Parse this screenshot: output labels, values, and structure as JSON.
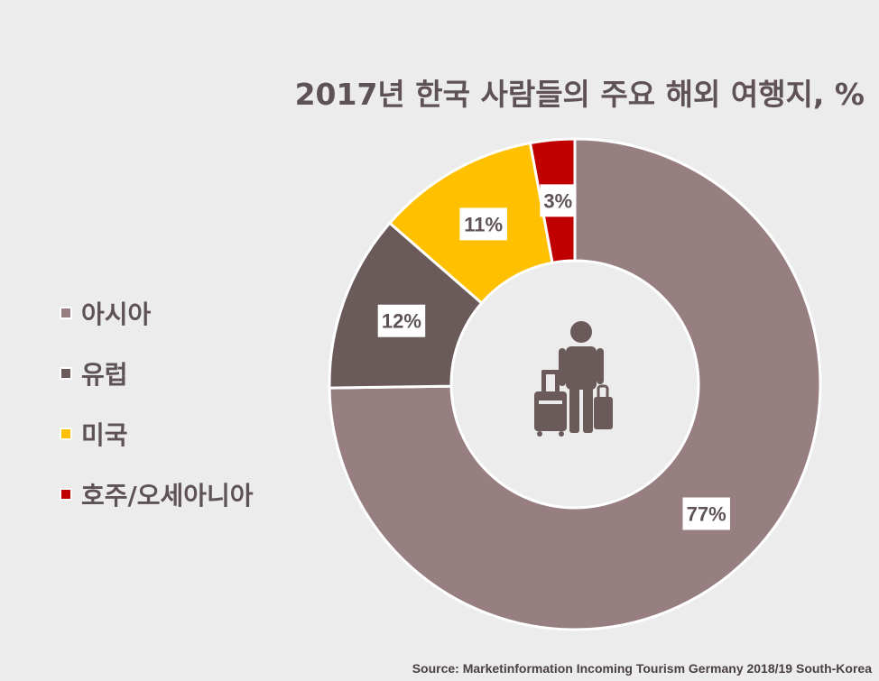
{
  "chart_data": {
    "type": "pie",
    "variant": "donut",
    "title": "2017년 한국 사람들의 주요 해외 여행지, %",
    "categories": [
      "아시아",
      "유럽",
      "미국",
      "호주/오세아니아"
    ],
    "values": [
      77,
      12,
      11,
      3
    ],
    "value_labels": [
      "77%",
      "12%",
      "11%",
      "3%"
    ],
    "colors": [
      "#977e80",
      "#6b5a5a",
      "#ffc000",
      "#c00000"
    ],
    "legend_position": "left",
    "center_icon": "traveler-with-luggage-icon"
  },
  "source": "Source: Marketinformation Incoming Tourism Germany 2018/19 South-Korea"
}
